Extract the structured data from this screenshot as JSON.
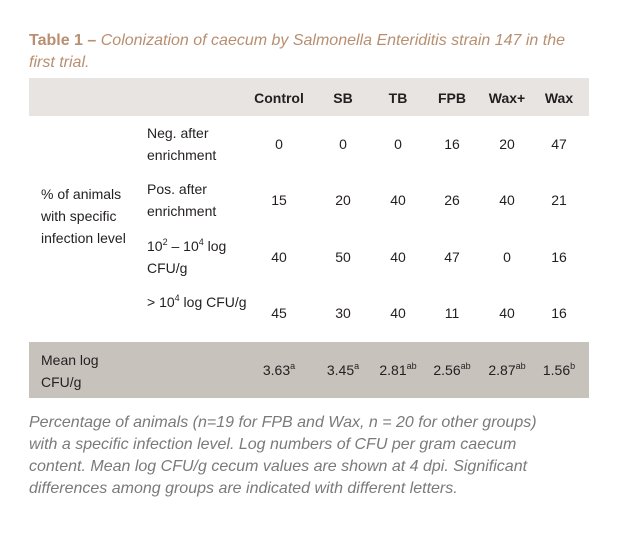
{
  "caption": {
    "label": "Table 1 –",
    "text": "Colonization of caecum by Salmonella Enteriditis strain 147 in the first trial."
  },
  "table": {
    "columns": [
      "Control",
      "SB",
      "TB",
      "FPB",
      "Wax+",
      "Wax"
    ],
    "group_label": "% of animals with specific infection level",
    "rows": [
      {
        "label": "Neg. after enrichment",
        "values": [
          "0",
          "0",
          "0",
          "16",
          "20",
          "47"
        ]
      },
      {
        "label": "Pos. after enrichment",
        "values": [
          "15",
          "20",
          "40",
          "26",
          "40",
          "21"
        ]
      },
      {
        "label_prefix": "10",
        "label_sup1": "2",
        "label_mid": " – 10",
        "label_sup2": "4",
        "label_suffix": " log CFU/g",
        "values": [
          "40",
          "50",
          "40",
          "47",
          "0",
          "16"
        ]
      },
      {
        "label_prefix": "> 10",
        "label_sup": "4",
        "label_suffix": " log CFU/g",
        "values": [
          "45",
          "30",
          "40",
          "11",
          "40",
          "16"
        ]
      }
    ],
    "mean_row": {
      "label": "Mean log CFU/g",
      "values": [
        {
          "value": "3.63",
          "sup": "a"
        },
        {
          "value": "3.45",
          "sup": "a"
        },
        {
          "value": "2.81",
          "sup": "ab"
        },
        {
          "value": "2.56",
          "sup": "ab"
        },
        {
          "value": "2.87",
          "sup": "ab"
        },
        {
          "value": "1.56",
          "sup": "b"
        }
      ]
    }
  },
  "note": "Percentage of animals (n=19 for FPB and Wax, n = 20 for other groups) with a specific infection level. Log numbers of CFU per gram caecum content. Mean log CFU/g cecum values are shown at 4 dpi. Significant differences among groups are indicated with different letters.",
  "colors": {
    "caption": "#b88f70",
    "header_bg": "#e8e4e1",
    "footer_bg": "#c8c2bd",
    "note_text": "#7a7a7a"
  }
}
